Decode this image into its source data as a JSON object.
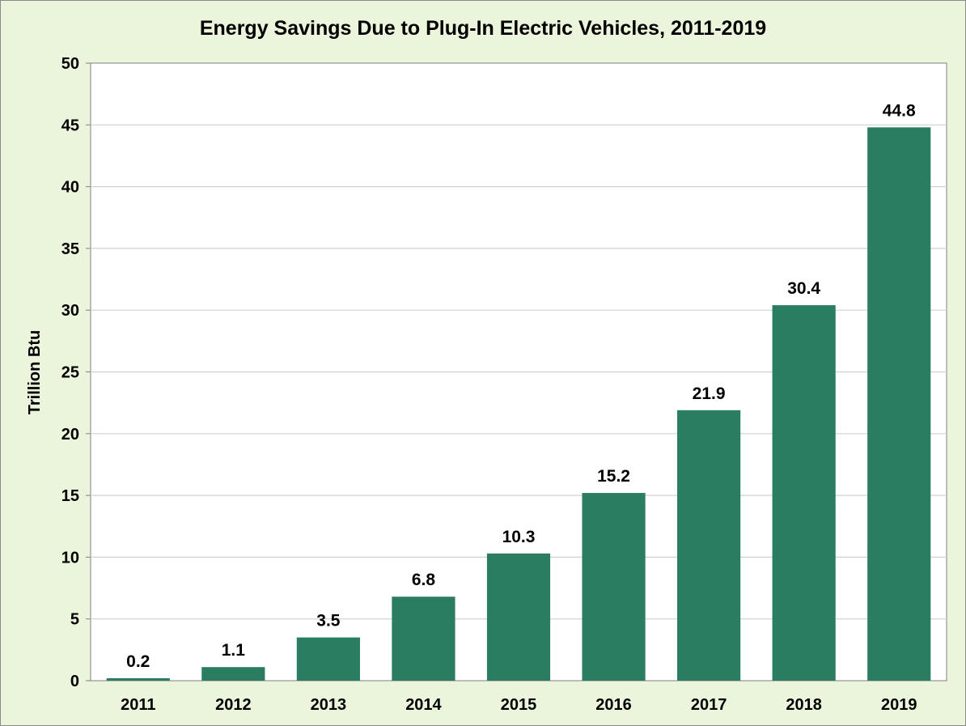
{
  "chart_data": {
    "type": "bar",
    "title": "Energy Savings Due to Plug-In Electric Vehicles, 2011-2019",
    "xlabel": "",
    "ylabel": "Trillion Btu",
    "categories": [
      "2011",
      "2012",
      "2013",
      "2014",
      "2015",
      "2016",
      "2017",
      "2018",
      "2019"
    ],
    "values": [
      0.2,
      1.1,
      3.5,
      6.8,
      10.3,
      15.2,
      21.9,
      30.4,
      44.8
    ],
    "data_labels": [
      "0.2",
      "1.1",
      "3.5",
      "6.8",
      "10.3",
      "15.2",
      "21.9",
      "30.4",
      "44.8"
    ],
    "ylim": [
      0,
      50
    ],
    "yticks": [
      "0",
      "5",
      "10",
      "15",
      "20",
      "25",
      "30",
      "35",
      "40",
      "45",
      "50"
    ],
    "grid": true,
    "legend": "none",
    "colors": {
      "bar": "#2a7d60",
      "background": "#ebf5dc",
      "plot_area": "#ffffff",
      "grid": "#d0d0d0",
      "axis": "#808080"
    }
  }
}
